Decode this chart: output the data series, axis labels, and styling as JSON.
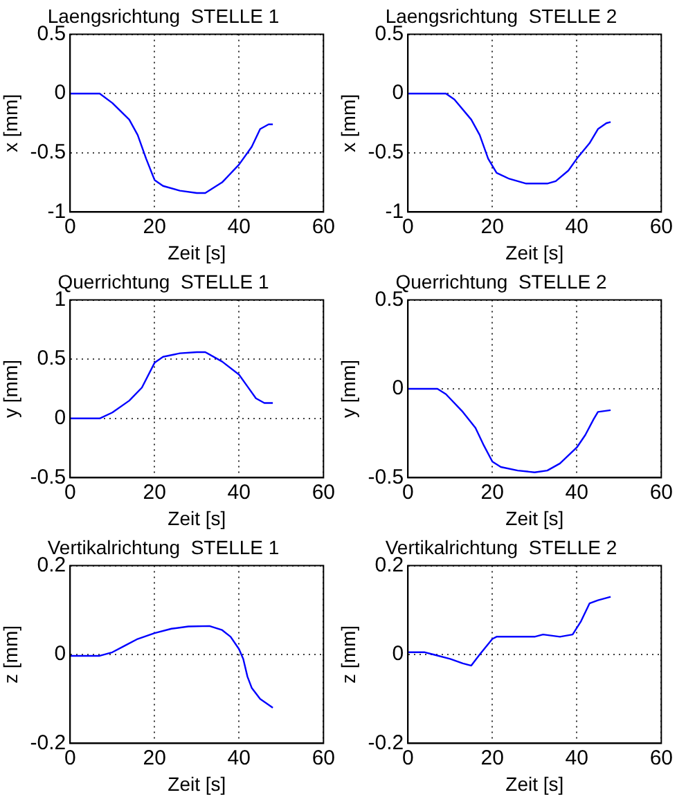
{
  "chart_data": [
    {
      "type": "line",
      "title": "Laengsrichtung  STELLE 1",
      "xlabel": "Zeit [s]",
      "ylabel": "x [mm]",
      "xlim": [
        0,
        60
      ],
      "xticks": [
        0,
        20,
        40,
        60
      ],
      "ylim": [
        -1,
        0.5
      ],
      "yticks": [
        -1,
        -0.5,
        0,
        0.5
      ],
      "grid": true,
      "marker": "none",
      "line_style": "solid",
      "series": [
        {
          "color": "#0000ff",
          "x": [
            0,
            7,
            10,
            14,
            16,
            18,
            20,
            22,
            26,
            30,
            32,
            36,
            40,
            43,
            45,
            47,
            48
          ],
          "values": [
            0,
            0,
            -0.08,
            -0.22,
            -0.35,
            -0.55,
            -0.73,
            -0.78,
            -0.82,
            -0.84,
            -0.84,
            -0.75,
            -0.6,
            -0.45,
            -0.3,
            -0.26,
            -0.26
          ]
        }
      ]
    },
    {
      "type": "line",
      "title": "Laengsrichtung  STELLE 2",
      "xlabel": "Zeit [s]",
      "ylabel": "x [mm]",
      "xlim": [
        0,
        60
      ],
      "xticks": [
        0,
        20,
        40,
        60
      ],
      "ylim": [
        -1,
        0.5
      ],
      "yticks": [
        -1,
        -0.5,
        0,
        0.5
      ],
      "grid": true,
      "marker": "none",
      "line_style": "solid",
      "series": [
        {
          "color": "#0000ff",
          "x": [
            0,
            9,
            11,
            15,
            17,
            19,
            21,
            24,
            28,
            33,
            35,
            38,
            40,
            43,
            45,
            47,
            48
          ],
          "values": [
            0,
            0,
            -0.05,
            -0.22,
            -0.35,
            -0.55,
            -0.67,
            -0.72,
            -0.76,
            -0.76,
            -0.74,
            -0.65,
            -0.55,
            -0.42,
            -0.3,
            -0.25,
            -0.24
          ]
        }
      ]
    },
    {
      "type": "line",
      "title": "Querrichtung  STELLE 1",
      "xlabel": "Zeit [s]",
      "ylabel": "y [mm]",
      "xlim": [
        0,
        60
      ],
      "xticks": [
        0,
        20,
        40,
        60
      ],
      "ylim": [
        -0.5,
        1
      ],
      "yticks": [
        -0.5,
        0,
        0.5,
        1
      ],
      "grid": true,
      "marker": "none",
      "line_style": "solid",
      "series": [
        {
          "color": "#0000ff",
          "x": [
            0,
            7,
            10,
            14,
            17,
            20,
            22,
            26,
            30,
            32,
            36,
            40,
            42,
            44,
            46,
            48
          ],
          "values": [
            0,
            0,
            0.05,
            0.15,
            0.26,
            0.47,
            0.52,
            0.55,
            0.56,
            0.56,
            0.48,
            0.37,
            0.27,
            0.17,
            0.13,
            0.13
          ]
        }
      ]
    },
    {
      "type": "line",
      "title": "Querrichtung  STELLE 2",
      "xlabel": "Zeit [s]",
      "ylabel": "y [mm]",
      "xlim": [
        0,
        60
      ],
      "xticks": [
        0,
        20,
        40,
        60
      ],
      "ylim": [
        -0.5,
        0.5
      ],
      "yticks": [
        -0.5,
        0,
        0.5
      ],
      "grid": true,
      "marker": "none",
      "line_style": "solid",
      "series": [
        {
          "color": "#0000ff",
          "x": [
            0,
            7,
            9,
            13,
            16,
            18,
            20,
            22,
            26,
            30,
            33,
            36,
            40,
            42,
            44,
            45,
            48
          ],
          "values": [
            0,
            0,
            -0.03,
            -0.13,
            -0.22,
            -0.32,
            -0.41,
            -0.44,
            -0.46,
            -0.47,
            -0.46,
            -0.42,
            -0.33,
            -0.26,
            -0.17,
            -0.13,
            -0.12
          ]
        }
      ]
    },
    {
      "type": "line",
      "title": "Vertikalrichtung  STELLE 1",
      "xlabel": "Zeit [s]",
      "ylabel": "z [mm]",
      "xlim": [
        0,
        60
      ],
      "xticks": [
        0,
        20,
        40,
        60
      ],
      "ylim": [
        -0.2,
        0.2
      ],
      "yticks": [
        -0.2,
        0,
        0.2
      ],
      "grid": true,
      "marker": "none",
      "line_style": "solid",
      "series": [
        {
          "color": "#0000ff",
          "x": [
            0,
            7,
            10,
            13,
            16,
            20,
            24,
            28,
            33,
            36,
            38,
            40,
            41,
            42,
            43,
            45,
            48
          ],
          "values": [
            -0.003,
            -0.003,
            0.005,
            0.02,
            0.035,
            0.048,
            0.058,
            0.063,
            0.064,
            0.055,
            0.04,
            0.012,
            -0.01,
            -0.05,
            -0.075,
            -0.1,
            -0.12
          ]
        }
      ]
    },
    {
      "type": "line",
      "title": "Vertikalrichtung  STELLE 2",
      "xlabel": "Zeit [s]",
      "ylabel": "z [mm]",
      "xlim": [
        0,
        60
      ],
      "xticks": [
        0,
        20,
        40,
        60
      ],
      "ylim": [
        -0.2,
        0.2
      ],
      "yticks": [
        -0.2,
        0,
        0.2
      ],
      "grid": true,
      "marker": "none",
      "line_style": "solid",
      "series": [
        {
          "color": "#0000ff",
          "x": [
            0,
            4,
            6,
            10,
            13,
            15,
            17,
            20,
            21,
            30,
            32,
            36,
            39,
            41,
            43,
            45,
            48
          ],
          "values": [
            0.005,
            0.005,
            0,
            -0.01,
            -0.02,
            -0.025,
            0,
            0.035,
            0.04,
            0.04,
            0.045,
            0.04,
            0.045,
            0.075,
            0.115,
            0.122,
            0.13
          ]
        }
      ]
    }
  ]
}
